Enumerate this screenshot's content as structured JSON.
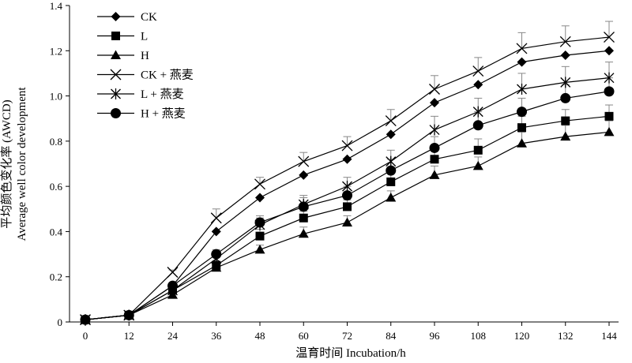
{
  "chart_data": {
    "type": "line",
    "x": [
      0,
      12,
      24,
      36,
      48,
      60,
      72,
      84,
      96,
      108,
      120,
      132,
      144
    ],
    "xlim": [
      0,
      144
    ],
    "ylim": [
      0,
      1.4
    ],
    "xticks": [
      "0",
      "12",
      "24",
      "36",
      "48",
      "60",
      "72",
      "84",
      "96",
      "108",
      "120",
      "132",
      "144"
    ],
    "yticks": [
      "0",
      "0.2",
      "0.4",
      "0.6",
      "0.8",
      "1.0",
      "1.2",
      "1.4"
    ],
    "xlabel": "温育时间 Incubation/h",
    "ylabel_cn": "平均颜色变化率 (AWCD)",
    "ylabel_en": "Average well color development",
    "grid": false,
    "legend_position": "top-left",
    "series": [
      {
        "name": "CK",
        "marker": "diamond",
        "values": [
          0.01,
          0.03,
          0.16,
          0.4,
          0.55,
          0.65,
          0.72,
          0.83,
          0.97,
          1.05,
          1.15,
          1.18,
          1.2
        ],
        "errors": [
          0,
          0,
          0,
          0,
          0,
          0,
          0,
          0,
          0,
          0,
          0,
          0,
          0
        ]
      },
      {
        "name": "L",
        "marker": "square",
        "values": [
          0.01,
          0.03,
          0.14,
          0.25,
          0.38,
          0.46,
          0.51,
          0.62,
          0.72,
          0.76,
          0.86,
          0.89,
          0.91
        ],
        "errors": [
          0,
          0,
          0.01,
          0.02,
          0.03,
          0.03,
          0.03,
          0.04,
          0.05,
          0.05,
          0.05,
          0.05,
          0.05
        ]
      },
      {
        "name": "H",
        "marker": "triangle",
        "values": [
          0.01,
          0.03,
          0.12,
          0.24,
          0.32,
          0.39,
          0.44,
          0.55,
          0.65,
          0.69,
          0.79,
          0.82,
          0.84
        ],
        "errors": [
          0,
          0,
          0.01,
          0.02,
          0.02,
          0.03,
          0.03,
          0.03,
          0.04,
          0.04,
          0.05,
          0.05,
          0.05
        ]
      },
      {
        "name": "CK + 燕麦",
        "marker": "x",
        "values": [
          0.01,
          0.03,
          0.22,
          0.46,
          0.61,
          0.71,
          0.78,
          0.89,
          1.03,
          1.11,
          1.21,
          1.24,
          1.26
        ],
        "errors": [
          0,
          0,
          0.01,
          0.04,
          0.03,
          0.04,
          0.04,
          0.05,
          0.06,
          0.06,
          0.07,
          0.07,
          0.07
        ]
      },
      {
        "name": "L + 燕麦",
        "marker": "star",
        "values": [
          0.01,
          0.03,
          0.14,
          0.28,
          0.43,
          0.52,
          0.6,
          0.71,
          0.85,
          0.93,
          1.03,
          1.06,
          1.08
        ],
        "errors": [
          0,
          0,
          0.01,
          0.03,
          0.03,
          0.04,
          0.04,
          0.05,
          0.06,
          0.06,
          0.07,
          0.07,
          0.07
        ]
      },
      {
        "name": "H + 燕麦",
        "marker": "circle",
        "values": [
          0.01,
          0.03,
          0.16,
          0.3,
          0.44,
          0.51,
          0.56,
          0.67,
          0.77,
          0.87,
          0.93,
          0.99,
          1.02
        ],
        "errors": [
          0,
          0,
          0.01,
          0.02,
          0.03,
          0.04,
          0.04,
          0.05,
          0.05,
          0.06,
          0.06,
          0.06,
          0.06
        ]
      }
    ]
  }
}
